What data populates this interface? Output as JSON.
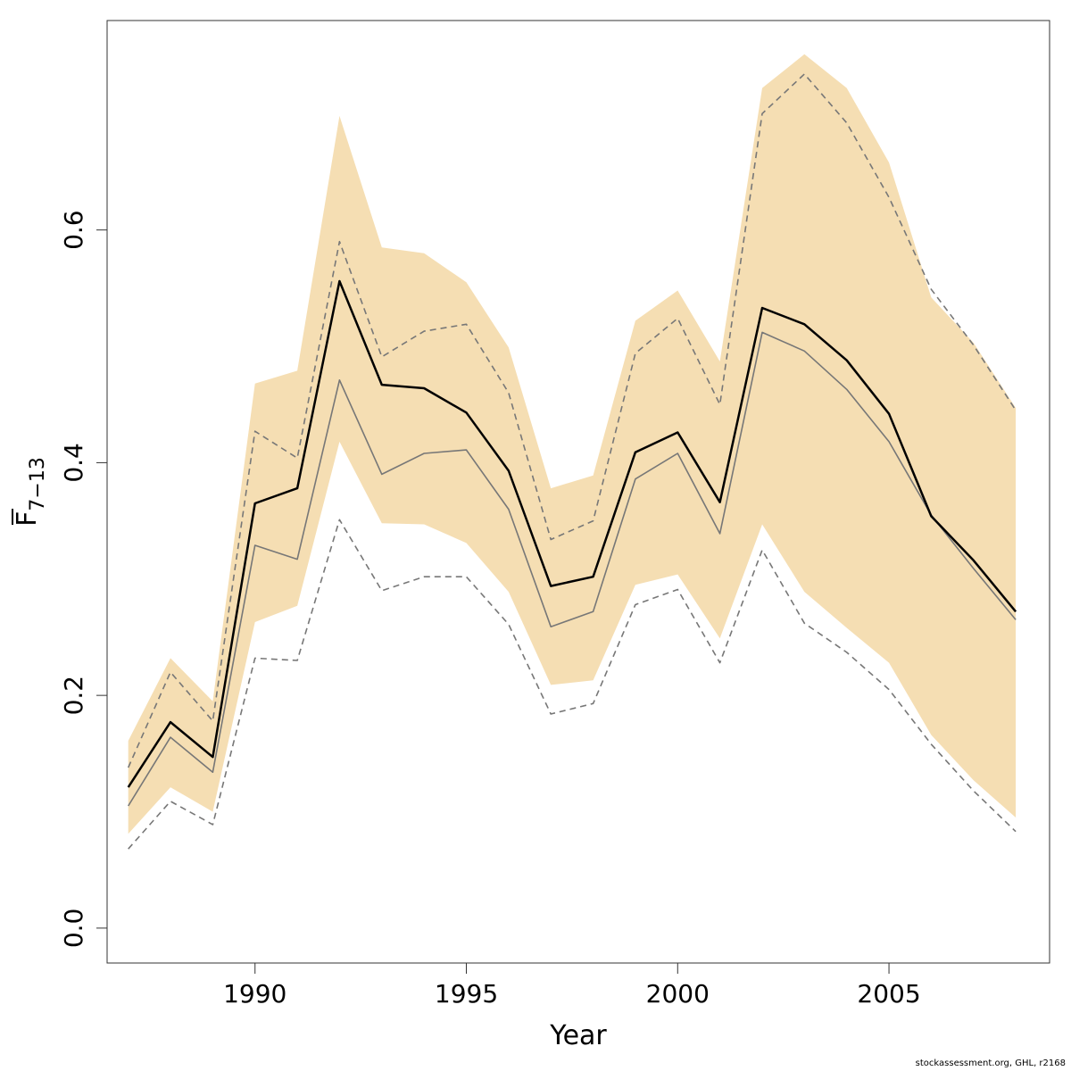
{
  "chart_data": {
    "type": "area",
    "title": "",
    "xlabel": "Year",
    "ylabel": {
      "base": "F",
      "subscript": "7−13",
      "overbar": true
    },
    "xlim": [
      1986.5,
      2008.8
    ],
    "ylim": [
      -0.03,
      0.78
    ],
    "xticks": [
      1990,
      1995,
      2000,
      2005
    ],
    "xtick_labels": [
      "1990",
      "1995",
      "2000",
      "2005"
    ],
    "yticks": [
      0.0,
      0.2,
      0.4,
      0.6
    ],
    "ytick_labels": [
      "0.0",
      "0.2",
      "0.4",
      "0.6"
    ],
    "grid": false,
    "legend": "none",
    "x": [
      1987,
      1988,
      1989,
      1990,
      1991,
      1992,
      1993,
      1994,
      1995,
      1996,
      1997,
      1998,
      1999,
      2000,
      2001,
      2002,
      2003,
      2004,
      2005,
      2006,
      2007,
      2008
    ],
    "band": {
      "color": "#f5deb3",
      "upper": [
        0.161,
        0.232,
        0.195,
        0.468,
        0.479,
        0.698,
        0.585,
        0.58,
        0.555,
        0.499,
        0.378,
        0.389,
        0.522,
        0.548,
        0.487,
        0.722,
        0.751,
        0.722,
        0.658,
        0.542,
        0.503,
        0.447
      ],
      "lower": [
        0.081,
        0.121,
        0.1,
        0.263,
        0.277,
        0.418,
        0.348,
        0.347,
        0.331,
        0.289,
        0.209,
        0.213,
        0.295,
        0.304,
        0.249,
        0.347,
        0.289,
        0.258,
        0.228,
        0.166,
        0.127,
        0.095
      ]
    },
    "series": [
      {
        "values": [
          0.121,
          0.177,
          0.147,
          0.365,
          0.378,
          0.556,
          0.467,
          0.464,
          0.443,
          0.393,
          0.294,
          0.302,
          0.409,
          0.426,
          0.366,
          0.533,
          0.519,
          0.488,
          0.442,
          0.354,
          0.316,
          0.272
        ],
        "color": "#000000",
        "style": "solid",
        "width": 2.5
      },
      {
        "values": [
          0.105,
          0.164,
          0.134,
          0.329,
          0.317,
          0.471,
          0.39,
          0.408,
          0.411,
          0.36,
          0.259,
          0.272,
          0.386,
          0.408,
          0.339,
          0.512,
          0.496,
          0.463,
          0.418,
          0.355,
          0.309,
          0.265
        ],
        "color": "#777777",
        "style": "solid",
        "width": 1.6
      },
      {
        "values": [
          0.138,
          0.22,
          0.178,
          0.427,
          0.404,
          0.59,
          0.491,
          0.513,
          0.519,
          0.46,
          0.334,
          0.35,
          0.494,
          0.524,
          0.45,
          0.7,
          0.734,
          0.692,
          0.628,
          0.549,
          0.501,
          0.445
        ],
        "color": "#777777",
        "style": "dashed",
        "width": 1.6
      },
      {
        "values": [
          0.068,
          0.109,
          0.089,
          0.232,
          0.23,
          0.351,
          0.29,
          0.302,
          0.302,
          0.261,
          0.184,
          0.193,
          0.278,
          0.291,
          0.228,
          0.325,
          0.262,
          0.237,
          0.205,
          0.158,
          0.118,
          0.083
        ],
        "color": "#777777",
        "style": "dashed",
        "width": 1.6
      }
    ]
  },
  "footer": {
    "credit": "stockassessment.org, GHL, r2168"
  }
}
